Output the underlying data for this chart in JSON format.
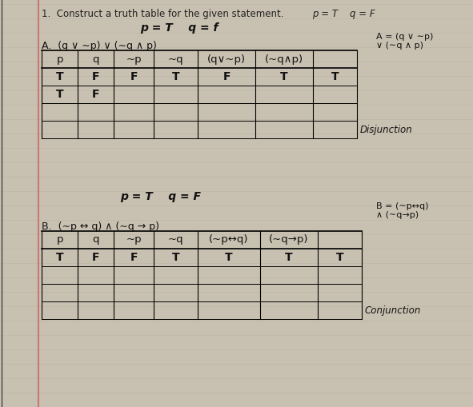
{
  "bg_color": "#c8c0b0",
  "paper_color": "#d4ccbc",
  "line_color": "#b8b0a0",
  "margin_color": "#cc6666",
  "title": "1.  Construct a truth table for the given statement.",
  "pq_top_right": "p = T    q = F",
  "pq_handwritten": "p = T    q = f",
  "note_A_line1": "A = (q ∨ ∼p)",
  "note_A_line2": "∨ (∼q ∧ p)",
  "section_A": "A.  (q ∨ ∼p) ∨ (∼q ∧ p)",
  "headers_A": [
    "p",
    "q",
    "~p",
    "~q",
    "(q∨~p)",
    "(~q∧p)",
    ""
  ],
  "data_A_row1": [
    "T",
    "F",
    "F",
    "T",
    "F",
    "T",
    "T"
  ],
  "data_A_row2": [
    "T",
    "F",
    "",
    "",
    "",
    "",
    ""
  ],
  "footer_A": "Disjunction",
  "pq_mid": "p = T    q = F",
  "note_B_line1": "B = (~p↔q)",
  "note_B_line2": "∧ (~q→p)",
  "section_B": "B.  (~p ↔ q) ∧ (~q → p)",
  "headers_B": [
    "p",
    "q",
    "~p",
    "~q",
    "(~p↔q)",
    "(~q→p)",
    ""
  ],
  "data_B_row1": [
    "T",
    "F",
    "F",
    "T",
    "T",
    "T",
    "T"
  ],
  "footer_B": "Conjunction"
}
